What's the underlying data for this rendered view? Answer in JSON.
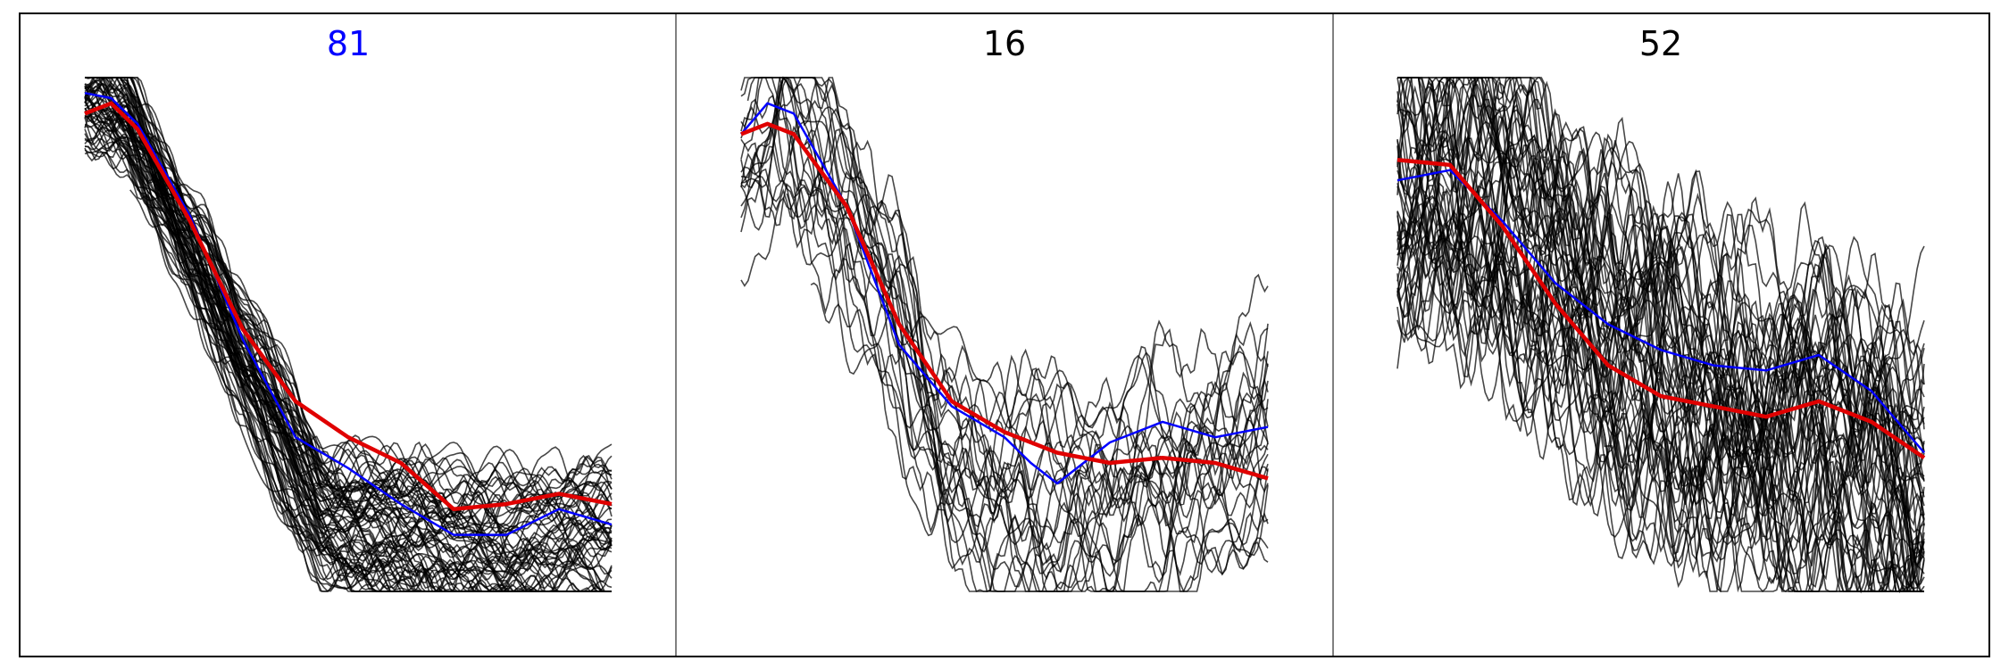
{
  "chart_data": [
    {
      "type": "line",
      "title": "81",
      "title_color": "#0000ff",
      "x_range": [
        0,
        1
      ],
      "y_range": [
        0,
        1
      ],
      "axes_visible": false,
      "grid": false,
      "legend": "none",
      "trace_color": "#000000",
      "trace_count": 75,
      "series": [
        {
          "color": "#0000ff",
          "x": [
            0,
            0.05,
            0.1,
            0.2,
            0.3,
            0.4,
            0.5,
            0.6,
            0.7,
            0.8,
            0.9,
            1.0
          ],
          "y": [
            0.97,
            0.96,
            0.91,
            0.73,
            0.49,
            0.3,
            0.24,
            0.17,
            0.11,
            0.11,
            0.16,
            0.13
          ]
        },
        {
          "color": "#e00000",
          "x": [
            0,
            0.05,
            0.1,
            0.2,
            0.3,
            0.4,
            0.5,
            0.6,
            0.7,
            0.8,
            0.9,
            1.0
          ],
          "y": [
            0.93,
            0.95,
            0.9,
            0.72,
            0.51,
            0.37,
            0.3,
            0.25,
            0.16,
            0.17,
            0.19,
            0.17
          ]
        }
      ]
    },
    {
      "type": "line",
      "title": "16",
      "title_color": "#000000",
      "x_range": [
        0,
        1
      ],
      "y_range": [
        0,
        1
      ],
      "axes_visible": false,
      "grid": false,
      "legend": "none",
      "trace_color": "#000000",
      "trace_count": 25,
      "series": [
        {
          "color": "#0000ff",
          "x": [
            0,
            0.05,
            0.1,
            0.2,
            0.3,
            0.4,
            0.5,
            0.55,
            0.6,
            0.7,
            0.8,
            0.9,
            1.0
          ],
          "y": [
            0.89,
            0.95,
            0.93,
            0.75,
            0.48,
            0.36,
            0.3,
            0.25,
            0.21,
            0.29,
            0.33,
            0.3,
            0.32
          ]
        },
        {
          "color": "#e00000",
          "x": [
            0,
            0.05,
            0.1,
            0.2,
            0.3,
            0.4,
            0.5,
            0.6,
            0.7,
            0.8,
            0.9,
            1.0
          ],
          "y": [
            0.89,
            0.91,
            0.89,
            0.75,
            0.52,
            0.37,
            0.31,
            0.27,
            0.25,
            0.26,
            0.25,
            0.22
          ]
        }
      ]
    },
    {
      "type": "line",
      "title": "52",
      "title_color": "#000000",
      "x_range": [
        0,
        1
      ],
      "y_range": [
        0,
        1
      ],
      "axes_visible": false,
      "grid": false,
      "legend": "none",
      "trace_color": "#000000",
      "trace_count": 60,
      "series": [
        {
          "color": "#0000ff",
          "x": [
            0,
            0.1,
            0.2,
            0.3,
            0.4,
            0.5,
            0.6,
            0.7,
            0.8,
            0.9,
            1.0
          ],
          "y": [
            0.8,
            0.82,
            0.72,
            0.6,
            0.52,
            0.47,
            0.44,
            0.43,
            0.46,
            0.39,
            0.27
          ]
        },
        {
          "color": "#e00000",
          "x": [
            0,
            0.1,
            0.2,
            0.3,
            0.4,
            0.5,
            0.6,
            0.7,
            0.8,
            0.9,
            1.0
          ],
          "y": [
            0.84,
            0.83,
            0.71,
            0.56,
            0.44,
            0.38,
            0.36,
            0.34,
            0.37,
            0.33,
            0.26
          ]
        }
      ]
    }
  ]
}
